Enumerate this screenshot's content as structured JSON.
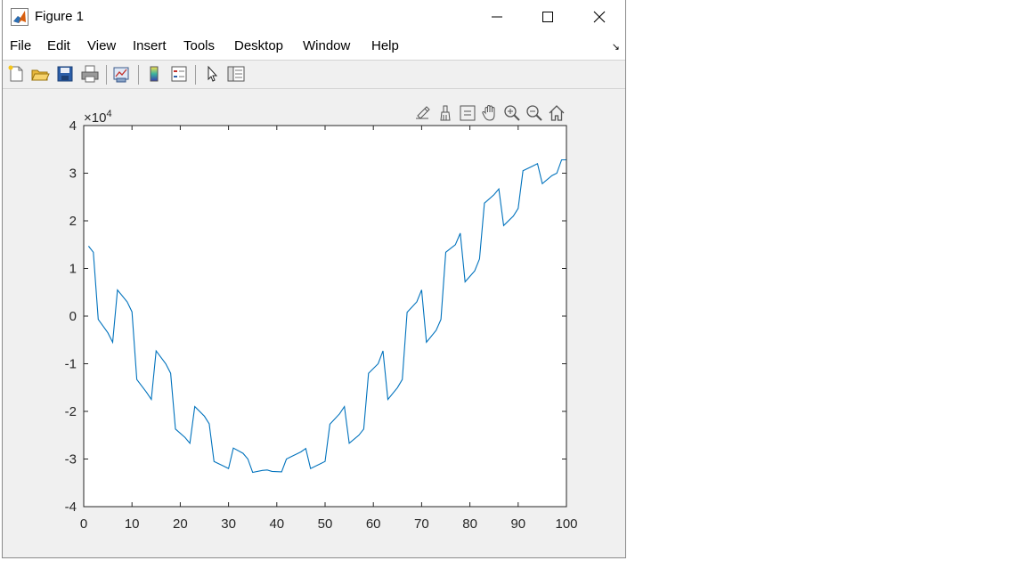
{
  "window": {
    "title": "Figure 1",
    "controls": {
      "minimize": "minimize",
      "maximize": "maximize",
      "close": "close"
    }
  },
  "menu": {
    "items": [
      "File",
      "Edit",
      "View",
      "Insert",
      "Tools",
      "Desktop",
      "Window",
      "Help"
    ]
  },
  "toolbar": {
    "icons": [
      "new-figure-icon",
      "open-file-icon",
      "save-icon",
      "print-icon",
      "link-plot-icon",
      "insert-colorbar-icon",
      "insert-legend-icon",
      "edit-plot-pointer-icon",
      "property-inspector-icon"
    ]
  },
  "axes_toolbar": {
    "icons": [
      "export-icon",
      "brush-icon",
      "datatip-icon",
      "pan-icon",
      "zoom-in-icon",
      "zoom-out-icon",
      "home-icon"
    ]
  },
  "chart_data": {
    "type": "line",
    "exponent_label": "×10",
    "exponent_power": "4",
    "xlim": [
      0,
      100
    ],
    "ylim": [
      -40000,
      40000
    ],
    "x_ticks": [
      0,
      10,
      20,
      30,
      40,
      50,
      60,
      70,
      80,
      90,
      100
    ],
    "y_ticks": [
      -4,
      -3,
      -2,
      -1,
      0,
      1,
      2,
      3,
      4
    ],
    "y_tick_scale": 10000,
    "line_color": "#0072BD",
    "grid": false,
    "x": [
      1,
      2,
      3,
      5,
      6,
      7,
      9,
      10,
      11,
      13,
      14,
      15,
      17,
      18,
      19,
      21,
      22,
      23,
      25,
      26,
      27,
      29,
      30,
      31,
      33,
      34,
      35,
      37,
      38,
      39,
      41,
      42,
      43,
      45,
      46,
      47,
      49,
      50,
      51,
      53,
      54,
      55,
      57,
      58,
      59,
      61,
      62,
      63,
      65,
      66,
      67,
      69,
      70,
      71,
      73,
      74,
      75,
      77,
      78,
      79,
      81,
      82,
      83,
      85,
      86,
      87,
      89,
      90,
      91,
      93,
      94,
      95,
      97,
      98,
      99,
      100
    ],
    "y": [
      14700,
      13400,
      -700,
      -3500,
      -5500,
      5500,
      3000,
      900,
      -13300,
      -16000,
      -17500,
      -7300,
      -10000,
      -12000,
      -23700,
      -25500,
      -26700,
      -19000,
      -21000,
      -22600,
      -30500,
      -31500,
      -32000,
      -27700,
      -28800,
      -30000,
      -32800,
      -32400,
      -32300,
      -32600,
      -32700,
      -30000,
      -29500,
      -28500,
      -27800,
      -32000,
      -31000,
      -30500,
      -22700,
      -20500,
      -19000,
      -26700,
      -25000,
      -23700,
      -12000,
      -10000,
      -7300,
      -17500,
      -15000,
      -13300,
      800,
      3000,
      5500,
      -5500,
      -3000,
      -700,
      13400,
      15000,
      17400,
      7200,
      9500,
      12000,
      23700,
      25500,
      26700,
      19000,
      21000,
      22600,
      30500,
      31500,
      32000,
      27800,
      29500,
      30000,
      32800,
      32800
    ]
  }
}
